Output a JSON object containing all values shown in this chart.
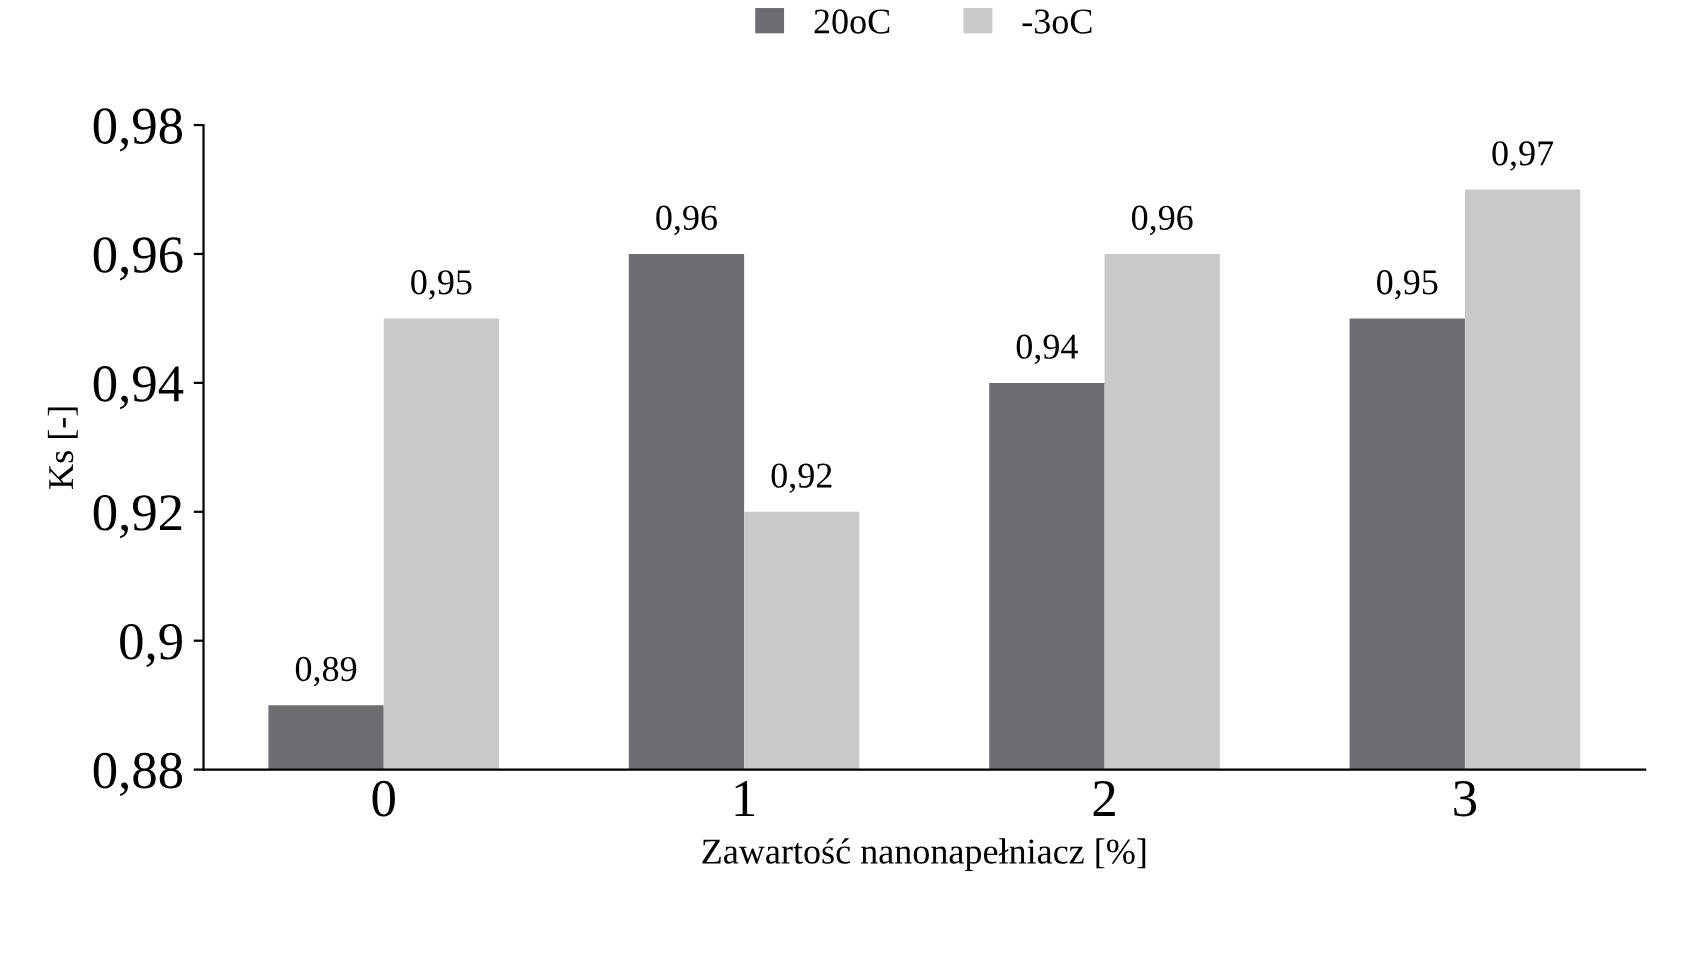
{
  "chart_data": {
    "type": "bar",
    "xlabel": "Zawartość nanonapełniacz [%]",
    "ylabel": "Ks [-]",
    "categories": [
      "0",
      "1",
      "2",
      "3"
    ],
    "series": [
      {
        "name": "20oC",
        "color": "#6d6e71",
        "values": [
          0.89,
          0.96,
          0.94,
          0.95
        ],
        "value_labels": [
          "0,89",
          "0,96",
          "0,94",
          "0,95"
        ]
      },
      {
        "name": "-3oC",
        "color": "#c9c9c9",
        "values": [
          0.95,
          0.92,
          0.96,
          0.97
        ],
        "value_labels": [
          "0,95",
          "0,92",
          "0,96",
          "0,97"
        ]
      }
    ],
    "ylim": [
      0.88,
      0.98
    ],
    "yticks": [
      {
        "value": 0.88,
        "label": "0,88"
      },
      {
        "value": 0.9,
        "label": "0,9"
      },
      {
        "value": 0.92,
        "label": "0,92"
      },
      {
        "value": 0.94,
        "label": "0,94"
      },
      {
        "value": 0.96,
        "label": "0,96"
      },
      {
        "value": 0.98,
        "label": "0,98"
      }
    ],
    "grid": false,
    "legend": "top"
  }
}
